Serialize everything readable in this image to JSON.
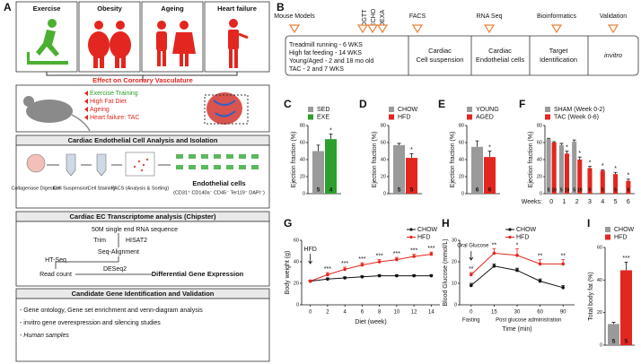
{
  "panel_a": {
    "label": "A",
    "conditions": [
      "Exercise",
      "Obesity",
      "Ageing",
      "Heart failure"
    ],
    "effect_title": "Effect on Coronary Vasculature",
    "models": [
      "Exercise Training",
      "High Fat Diet",
      "Ageing",
      "Heart failure: TAC"
    ],
    "isolation": {
      "title": "Cardiac Endothelial Cell Analysis and Isolation",
      "steps": [
        "Collagenase Digestion",
        "Cell Suspension",
        "Cell Staining",
        "FACS (Analysis & Sorting)"
      ],
      "result": "Endothelial cells",
      "markers": "(CD31⁺ CD140a⁻ CD45⁻ Ter119⁻ DAPI⁻)"
    },
    "transcriptome": {
      "title": "Cardiac EC Transcriptome analysis (Chipster)",
      "input": "50M single end RNA sequence",
      "trim": "Trim",
      "hisat": "HISAT2",
      "alignment": "Seq-Alignment",
      "htseq": "HT-Seq",
      "read_count": "Read count",
      "deseq": "DESeq2",
      "output": "Differential Gene Expression"
    },
    "validation": {
      "title": "Candidate Gene Identification and Validation",
      "items": [
        "- Gene ontology, Gene set enrichment and venn-diagram analysis",
        "- invitro gene overexpression and silencing studies",
        "- Human samples"
      ]
    }
  },
  "panel_b": {
    "label": "B",
    "milestones": [
      "Mouse Models",
      "OGTT",
      "ECHO",
      "DEXA",
      "FACS",
      "RNA Seq",
      "Bioinformatics",
      "Validation"
    ],
    "models": [
      "Treadmill running - 6 WKS",
      "High fat feeding - 14 WKS",
      "Young/Aged - 2 and 18 mo old",
      "TAC - 2 and 7 WKS"
    ],
    "stages": [
      [
        "Cardiac",
        "Cell suspension"
      ],
      [
        "Cardiac",
        "Endothelial cells"
      ],
      [
        "Target",
        "Identification"
      ],
      [
        "invitro"
      ]
    ]
  },
  "chart_data": [
    {
      "type": "bar",
      "label": "C",
      "ylabel": "Ejection fraction (%)",
      "ylim": [
        0,
        80
      ],
      "yticks": [
        0,
        20,
        40,
        60,
        80
      ],
      "series": [
        {
          "name": "SED",
          "color": "#9a9a9a",
          "values": [
            50
          ],
          "errors": [
            7
          ],
          "n": [
            5
          ],
          "significance": [
            null
          ]
        },
        {
          "name": "EXE",
          "color": "#2ca02c",
          "values": [
            64
          ],
          "errors": [
            6
          ],
          "n": [
            4
          ],
          "significance": [
            "*"
          ]
        }
      ]
    },
    {
      "type": "bar",
      "label": "D",
      "ylabel": "Ejection fraction (%)",
      "ylim": [
        0,
        80
      ],
      "yticks": [
        0,
        20,
        40,
        60,
        80
      ],
      "series": [
        {
          "name": "CHOW",
          "color": "#9a9a9a",
          "values": [
            57
          ],
          "errors": [
            2
          ],
          "n": [
            5
          ],
          "significance": [
            null
          ]
        },
        {
          "name": "HFD",
          "color": "#e3261f",
          "values": [
            42
          ],
          "errors": [
            5
          ],
          "n": [
            5
          ],
          "significance": [
            "*"
          ]
        }
      ]
    },
    {
      "type": "bar",
      "label": "E",
      "ylabel": "Ejection fraction (%)",
      "ylim": [
        0,
        80
      ],
      "yticks": [
        0,
        20,
        40,
        60,
        80
      ],
      "series": [
        {
          "name": "YOUNG",
          "color": "#9a9a9a",
          "values": [
            55
          ],
          "errors": [
            7
          ],
          "n": [
            6
          ],
          "significance": [
            null
          ]
        },
        {
          "name": "AGED",
          "color": "#e3261f",
          "values": [
            43
          ],
          "errors": [
            7
          ],
          "n": [
            6
          ],
          "significance": [
            "*"
          ]
        }
      ]
    },
    {
      "type": "bar",
      "label": "F",
      "ylabel": "Ejection fraction (%)",
      "xlabel": "Weeks:",
      "ylim": [
        0,
        80
      ],
      "yticks": [
        0,
        20,
        40,
        60,
        80
      ],
      "categories": [
        "0",
        "1",
        "2",
        "3",
        "4",
        "5",
        "6"
      ],
      "series": [
        {
          "name": "SHAM (Week 0-2)",
          "color": "#9a9a9a",
          "values": [
            64,
            57,
            61,
            null,
            null,
            null,
            null
          ],
          "errors": [
            1,
            2,
            2,
            null,
            null,
            null,
            null
          ],
          "n": [
            5,
            5,
            5,
            null,
            null,
            null,
            null
          ],
          "significance": [
            null,
            null,
            null,
            null,
            null,
            null,
            null
          ]
        },
        {
          "name": "TAC (Week 0-6)",
          "color": "#e3261f",
          "values": [
            60,
            47,
            40,
            30,
            27,
            23,
            15
          ],
          "errors": [
            1,
            3,
            3,
            2,
            1,
            2,
            2
          ],
          "n": [
            10,
            10,
            10,
            5,
            5,
            5,
            8
          ],
          "significance": [
            null,
            "*",
            "*",
            "*",
            "*",
            "*",
            "*"
          ]
        }
      ]
    },
    {
      "type": "line",
      "label": "G",
      "ylabel": "Body weight (g)",
      "xlabel": "Diet (week)",
      "annotation": "HFD",
      "x": [
        0,
        2,
        4,
        6,
        8,
        10,
        12,
        14
      ],
      "xlim": [
        -1,
        15
      ],
      "xticks": [
        0,
        2,
        4,
        6,
        8,
        10,
        12,
        14
      ],
      "ylim": [
        0,
        60
      ],
      "yticks": [
        0,
        20,
        40,
        60
      ],
      "series": [
        {
          "name": "CHOW",
          "color": "#111111",
          "values": [
            22,
            24,
            25,
            26,
            27,
            27,
            27,
            27
          ],
          "errors": [
            1,
            1,
            1,
            1,
            1,
            1,
            1,
            1
          ],
          "significance": [
            null,
            null,
            null,
            null,
            null,
            null,
            null,
            null
          ]
        },
        {
          "name": "HFD",
          "color": "#e3261f",
          "values": [
            22,
            28,
            33,
            37,
            40,
            42,
            45,
            47
          ],
          "errors": [
            1,
            2,
            2,
            2,
            2,
            2,
            2,
            2
          ],
          "significance": [
            null,
            "***",
            "***",
            "***",
            "***",
            "***",
            "***",
            "***"
          ]
        }
      ]
    },
    {
      "type": "line",
      "label": "H",
      "ylabel": "Blood Glucose (mmol/L)",
      "xlabel": "Time (min)",
      "annotation": "Oral Glucose",
      "notes": [
        "Fasting",
        "Post glucose administration"
      ],
      "categories": [
        "0",
        "15",
        "30",
        "60",
        "90"
      ],
      "ylim": [
        0,
        30
      ],
      "yticks": [
        0,
        10,
        20,
        30
      ],
      "series": [
        {
          "name": "CHOW",
          "color": "#111111",
          "values": [
            9,
            18,
            16,
            11,
            8
          ],
          "errors": [
            1,
            1,
            1,
            1,
            1
          ],
          "significance": [
            null,
            null,
            null,
            null,
            null
          ]
        },
        {
          "name": "HFD",
          "color": "#e3261f",
          "values": [
            14,
            24,
            23,
            19,
            19
          ],
          "errors": [
            1,
            2,
            3,
            2,
            2
          ],
          "significance": [
            "**",
            "**",
            "*",
            "**",
            "**"
          ]
        }
      ]
    },
    {
      "type": "bar",
      "label": "I",
      "ylabel": "Total body fat (%)",
      "ylim": [
        0,
        60
      ],
      "yticks": [
        0,
        20,
        40,
        60
      ],
      "series": [
        {
          "name": "CHOW",
          "color": "#9a9a9a",
          "values": [
            13
          ],
          "errors": [
            1
          ],
          "n": [
            5
          ],
          "significance": [
            null
          ]
        },
        {
          "name": "HFD",
          "color": "#e3261f",
          "values": [
            46
          ],
          "errors": [
            5
          ],
          "n": [
            5
          ],
          "significance": [
            "***"
          ]
        }
      ]
    }
  ]
}
